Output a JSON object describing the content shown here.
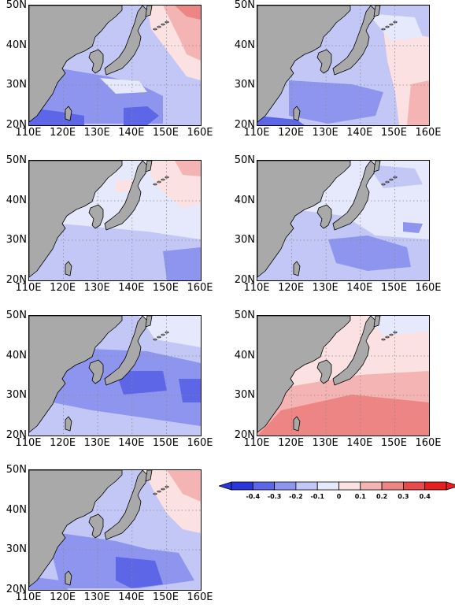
{
  "axes": {
    "lat_labels": [
      "50N",
      "40N",
      "30N",
      "20N"
    ],
    "lon_labels": [
      "110E",
      "120E",
      "130E",
      "140E",
      "150E",
      "160E"
    ]
  },
  "panels": [
    {
      "id": "panel-1",
      "anomaly_pattern": "negative south and west, positive northeast"
    },
    {
      "id": "panel-2",
      "anomaly_pattern": "weak negative center, positive east"
    },
    {
      "id": "panel-3",
      "anomaly_pattern": "weak negative, slight positive north"
    },
    {
      "id": "panel-4",
      "anomaly_pattern": "weak negative throughout"
    },
    {
      "id": "panel-5",
      "anomaly_pattern": "moderate negative broadly"
    },
    {
      "id": "panel-6",
      "anomaly_pattern": "positive broadly, strongest south"
    },
    {
      "id": "panel-7",
      "anomaly_pattern": "negative south, positive northeast"
    }
  ],
  "colorbar": {
    "labels": [
      "-0.4",
      "-0.3",
      "-0.2",
      "-0.1",
      "0",
      "0.1",
      "0.2",
      "0.3",
      "0.4"
    ],
    "colors": [
      "#2a36d9",
      "#5c66e6",
      "#8e95ef",
      "#c3c7f6",
      "#e6e8fb",
      "#fbe1e1",
      "#f5b4b4",
      "#ee8585",
      "#e84b4b",
      "#e52020"
    ]
  }
}
